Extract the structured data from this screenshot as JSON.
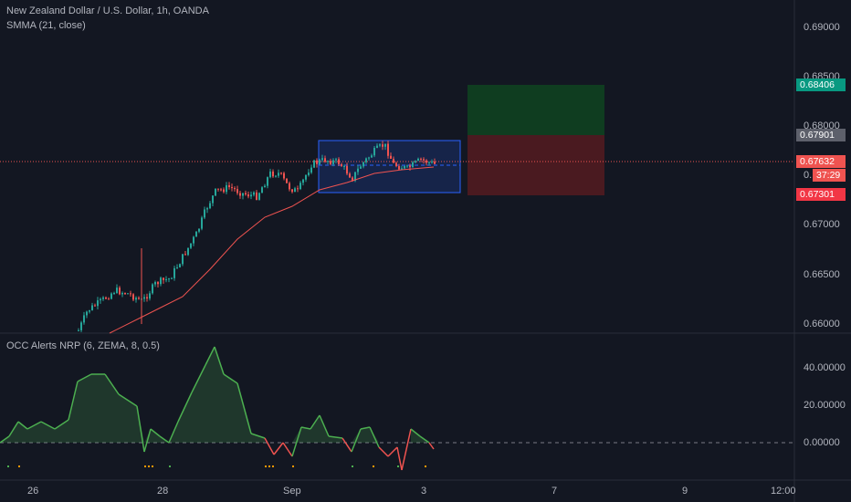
{
  "main_pane": {
    "symbol_title": "New Zealand Dollar / U.S. Dollar, 1h, OANDA",
    "indicator_title": "SMMA (21, close)",
    "price_ticks": [
      "0.69000",
      "0.68500",
      "0.68000",
      "0.67500",
      "0.67000",
      "0.66500",
      "0.66000"
    ],
    "price_tags": {
      "take_profit": "0.68406",
      "entry": "0.67901",
      "last_price": "0.67632",
      "countdown": "37:29",
      "stop_loss": "0.67301",
      "partial_tick": "0."
    }
  },
  "oscillator_pane": {
    "title": "OCC Alerts NRP (6, ZEMA, 8, 0.5)",
    "ticks": [
      "40.00000",
      "20.00000",
      "0.00000"
    ]
  },
  "time_axis": {
    "labels": [
      "26",
      "28",
      "Sep",
      "3",
      "7",
      "9",
      "12:00"
    ]
  },
  "colors": {
    "background": "#131722",
    "bull_candle": "#26a69a",
    "bear_candle": "#ef5350",
    "smma_line": "#ef5350",
    "take_profit_zone": "#0f3d20",
    "stop_loss_zone": "#4a1a20",
    "channel": "#2962ff",
    "osc_positive": "#4caf50",
    "osc_negative": "#ef5350"
  }
}
